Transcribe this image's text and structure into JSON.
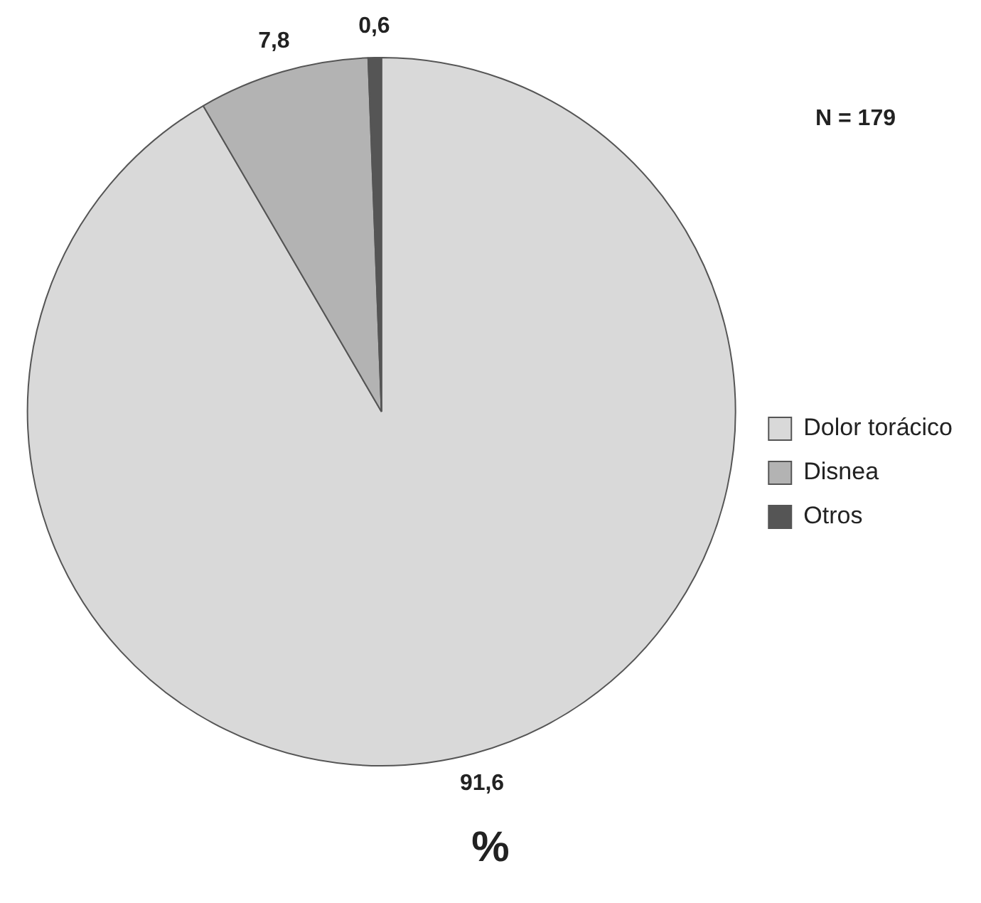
{
  "chart_data": {
    "type": "pie",
    "title": "%",
    "categories": [
      "Dolor torácico",
      "Disnea",
      "Otros"
    ],
    "values": [
      91.6,
      7.8,
      0.6
    ],
    "colors": [
      "#d9d9d9",
      "#b3b3b3",
      "#555555"
    ],
    "value_labels": [
      "91,6",
      "7,8",
      "0,6"
    ],
    "annotations": [
      "N = 179"
    ],
    "legend": "right"
  }
}
